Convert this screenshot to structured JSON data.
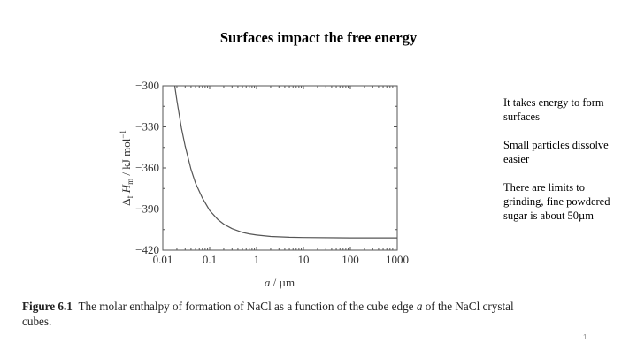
{
  "slide": {
    "title": "Surfaces impact the free energy",
    "page_number": "1",
    "notes": [
      "It takes energy to form surfaces",
      "Small particles dissolve easier",
      "There are limits to grinding, fine powdered sugar is about 50µm"
    ],
    "caption": {
      "label": "Figure 6.1",
      "text_before_var": "The molar enthalpy of formation of NaCl as a function of the cube edge ",
      "variable": "a",
      "text_after_var": " of the NaCl crystal cubes."
    }
  },
  "chart_data": {
    "type": "line",
    "title": "",
    "xlabel": "a / µm",
    "ylabel": "Δf Hm / kJ mol⁻¹",
    "xscale": "log",
    "xlim": [
      0.01,
      1000
    ],
    "ylim": [
      -420,
      -300
    ],
    "xticks": [
      0.01,
      0.1,
      1,
      10,
      100,
      1000
    ],
    "xtick_labels": [
      "0.01",
      "0.1",
      "1",
      "10",
      "100",
      "1000"
    ],
    "yticks": [
      -300,
      -330,
      -360,
      -390,
      -420
    ],
    "ytick_labels": [
      "−300",
      "−330",
      "−360",
      "−390",
      "−420"
    ],
    "grid": false,
    "legend": "none",
    "series": [
      {
        "name": "NaCl",
        "x": [
          0.018,
          0.02,
          0.025,
          0.03,
          0.04,
          0.05,
          0.07,
          0.1,
          0.15,
          0.2,
          0.3,
          0.5,
          0.7,
          1,
          2,
          5,
          10,
          100,
          1000
        ],
        "y": [
          -300,
          -311,
          -331,
          -344,
          -361,
          -371,
          -382,
          -391,
          -397.7,
          -401,
          -404.3,
          -407,
          -408.1,
          -409,
          -410,
          -410.6,
          -410.8,
          -411,
          -411
        ]
      }
    ]
  }
}
